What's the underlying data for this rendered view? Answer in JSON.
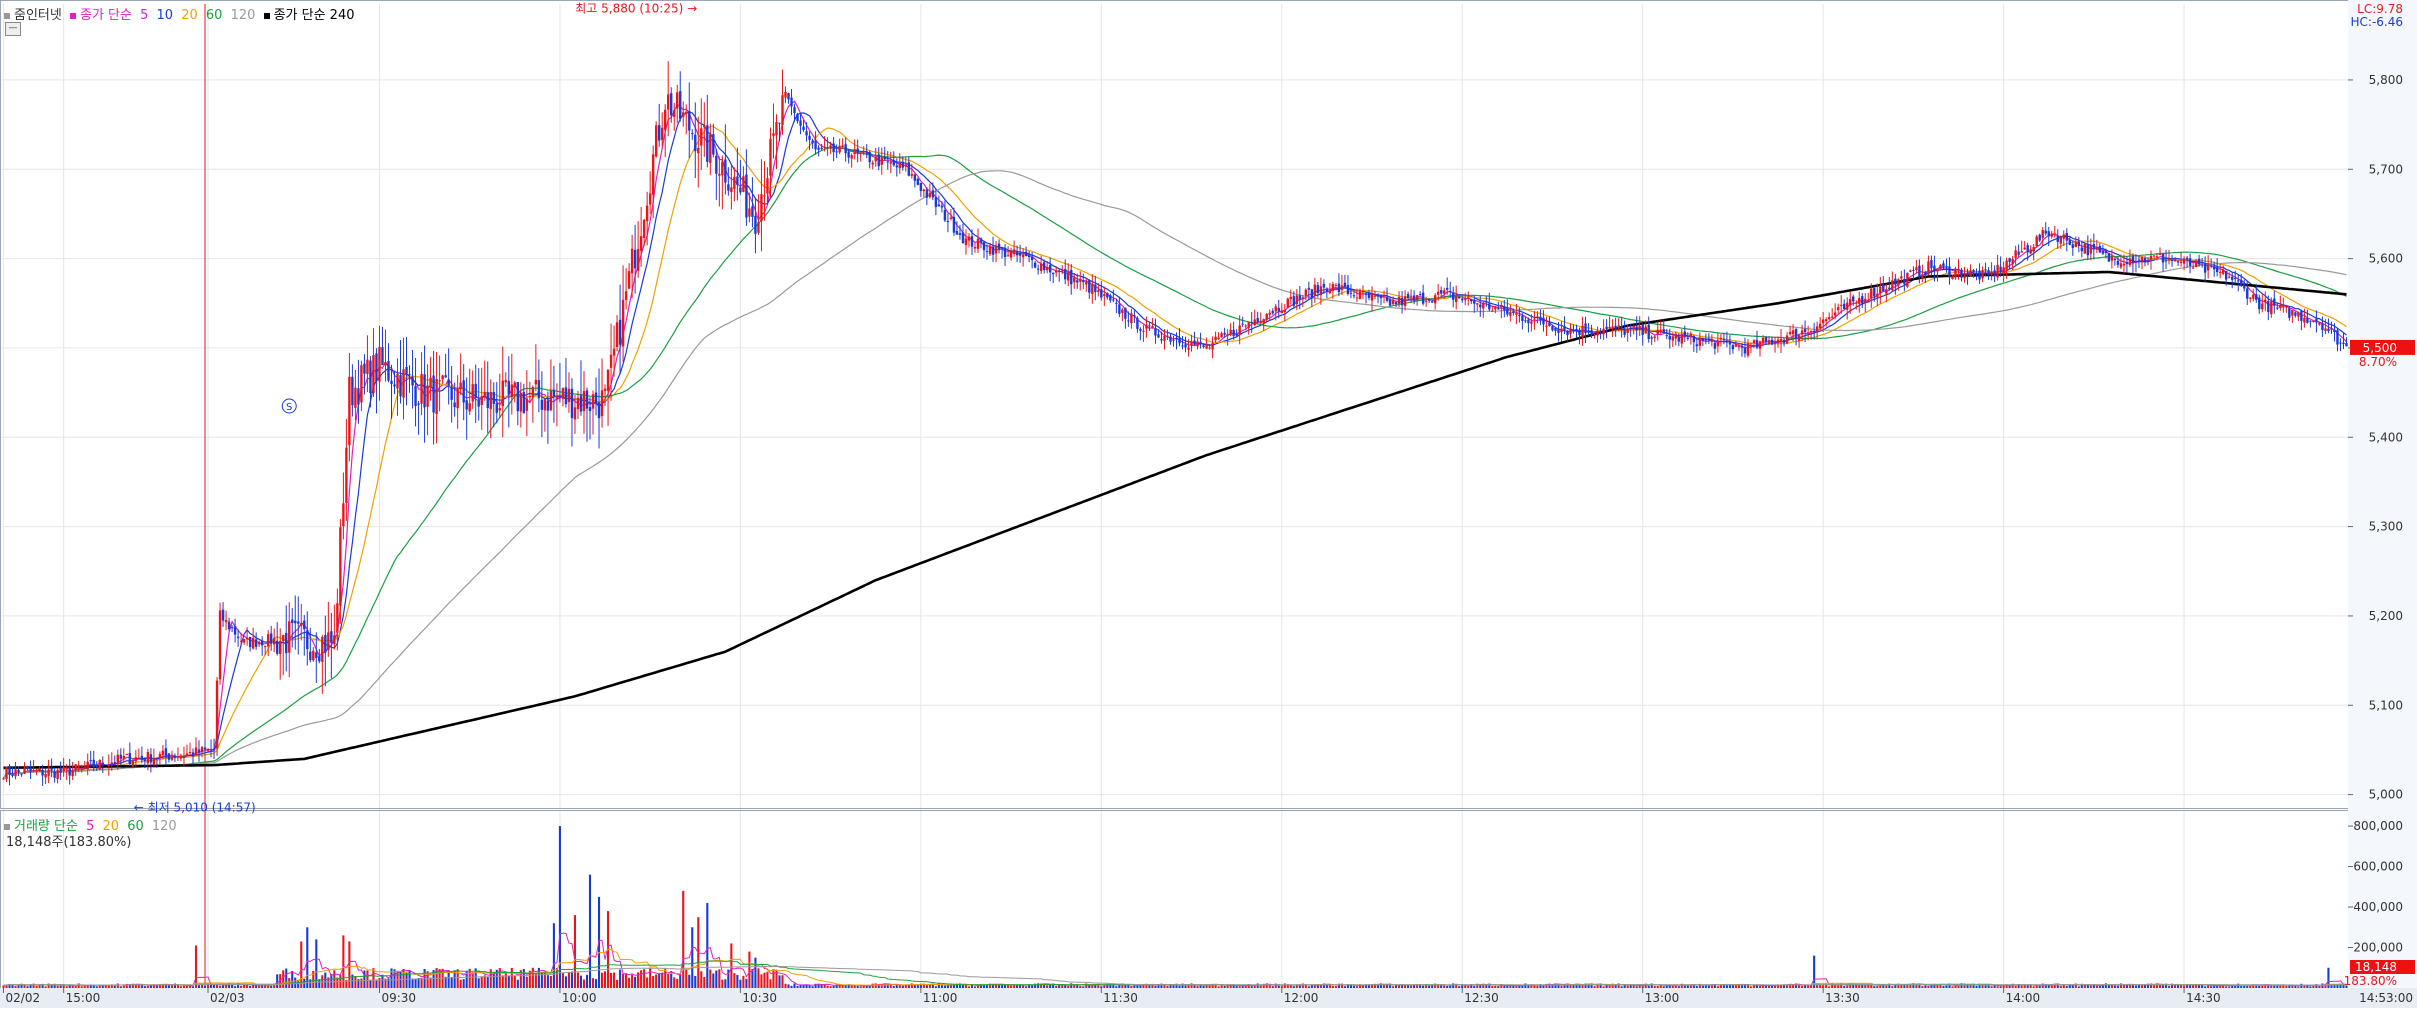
{
  "legend": {
    "main": [
      "줌인터넷",
      "종가 단순",
      "5",
      "10",
      "20",
      "60",
      "120",
      "종가 단순 240"
    ],
    "volume": [
      "거래량 단순",
      "5",
      "20",
      "60",
      "120"
    ],
    "volume_value": "18,148주(183.80%)"
  },
  "top_right": {
    "lc": "LC:9.78",
    "hc": "HC:-6.46"
  },
  "annotations": {
    "high": "최고 5,880 (10:25)",
    "low": "최저 5,010 (14:57)",
    "marker": "S"
  },
  "current": {
    "price_badge": "5,500",
    "price_pct": "8.70%",
    "volume_badge": "18,148",
    "volume_pct": "183.80%",
    "time": "14:53:00"
  },
  "colors": {
    "up": "#e8151b",
    "down": "#1a3ad6",
    "ma5": "#e020c0",
    "ma10": "#1a3ad6",
    "ma20": "#f0a000",
    "ma60": "#1aa040",
    "ma120": "#9a9a9a",
    "ma240": "#000000"
  },
  "chart_data": [
    {
      "type": "line",
      "title": "줌인터넷",
      "y_ticks": [
        "5,000",
        "5,100",
        "5,200",
        "5,300",
        "5,400",
        "5,500",
        "5,600",
        "5,700",
        "5,800"
      ],
      "ylim": [
        4985,
        5885
      ],
      "x_ticks": [
        "02/02",
        "15:00",
        "02/03",
        "09:30",
        "10:00",
        "10:30",
        "11:00",
        "11:30",
        "12:00",
        "12:30",
        "13:00",
        "13:30",
        "14:00",
        "14:30"
      ],
      "price_anchors": {
        "x": [
          0,
          20,
          40,
          60,
          70,
          72,
          80,
          95,
          110,
          115,
          125,
          140,
          160,
          180,
          200,
          220,
          240,
          250,
          260,
          270,
          280,
          300,
          320,
          340,
          360,
          380,
          400,
          420,
          440,
          460,
          480,
          500,
          520,
          540,
          560,
          580,
          600,
          620,
          640,
          660,
          680,
          700,
          720,
          740,
          750,
          760,
          770,
          779
        ],
        "y": [
          5025,
          5025,
          5040,
          5045,
          5050,
          5200,
          5170,
          5175,
          5170,
          5450,
          5480,
          5450,
          5440,
          5445,
          5440,
          5780,
          5700,
          5650,
          5780,
          5720,
          5720,
          5700,
          5620,
          5600,
          5570,
          5520,
          5500,
          5540,
          5570,
          5550,
          5560,
          5540,
          5520,
          5520,
          5510,
          5500,
          5520,
          5560,
          5590,
          5580,
          5630,
          5600,
          5600,
          5580,
          5550,
          5540,
          5530,
          5500
        ]
      },
      "series": [
        {
          "name": "5",
          "key": "ma5",
          "win": 5
        },
        {
          "name": "10",
          "key": "ma10",
          "win": 10
        },
        {
          "name": "20",
          "key": "ma20",
          "win": 20
        },
        {
          "name": "60",
          "key": "ma60",
          "win": 60
        },
        {
          "name": "120",
          "key": "ma120",
          "win": 120
        },
        {
          "name": "240",
          "key": "ma240",
          "anchors_x": [
            0,
            70,
            100,
            190,
            240,
            290,
            400,
            500,
            540,
            590,
            640,
            700,
            779
          ],
          "anchors_y": [
            5030,
            5033,
            5040,
            5110,
            5160,
            5240,
            5380,
            5490,
            5525,
            5550,
            5580,
            5585,
            5560
          ]
        }
      ]
    },
    {
      "type": "bar",
      "title": "거래량",
      "y_ticks": [
        "200,000",
        "400,000",
        "600,000",
        "800,000"
      ],
      "ylim": [
        0,
        830000
      ],
      "spikes": {
        "x": [
          64,
          99,
          101,
          104,
          113,
          115,
          183,
          185,
          190,
          195,
          198,
          201,
          226,
          229,
          231,
          234,
          242,
          248,
          250,
          602,
          773
        ],
        "y": [
          210000,
          230000,
          300000,
          240000,
          260000,
          230000,
          320000,
          800000,
          360000,
          560000,
          450000,
          380000,
          480000,
          300000,
          350000,
          420000,
          220000,
          180000,
          150000,
          160000,
          100000
        ]
      }
    }
  ]
}
